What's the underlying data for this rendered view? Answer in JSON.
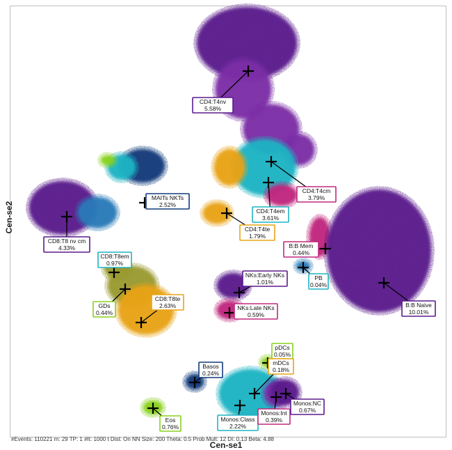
{
  "chart_data": {
    "type": "scatter",
    "title": "",
    "xlabel": "Cen-se1",
    "ylabel": "Cen-se2",
    "grid": false,
    "legend": "none",
    "footer": "#Events: 110221 m: 29 TP: 1 #It: 1000 t Dist: On NN Size: 200 Theta: 0.5 Prob Mult: 12 DI: 0.13 Beta: 4.88",
    "colors": {
      "purple": "#5a1a8c",
      "violet": "#7b2ea6",
      "magenta": "#c0287e",
      "teal": "#1fb4c4",
      "navy": "#123a7a",
      "orange": "#e8a317",
      "olive": "#9a9a30",
      "lime": "#88d11c",
      "blue": "#2a7ab8"
    },
    "populations": [
      {
        "name": "CD4:T4nv",
        "percent": "5.58%",
        "border": "#5a1a8c"
      },
      {
        "name": "CD4:T4cm",
        "percent": "3.79%",
        "border": "#c0287e"
      },
      {
        "name": "CD4:T4em",
        "percent": "3.61%",
        "border": "#1fb4c4"
      },
      {
        "name": "CD4:T4te",
        "percent": "1.79%",
        "border": "#e8a317"
      },
      {
        "name": "MAITs NKTs",
        "percent": "2.52%",
        "border": "#123a7a"
      },
      {
        "name": "CD8:T8 nv cm",
        "percent": "4.33%",
        "border": "#5a1a8c"
      },
      {
        "name": "CD8:T8em",
        "percent": "0.97%",
        "border": "#1fb4c4"
      },
      {
        "name": "GDs",
        "percent": "0.44%",
        "border": "#88d11c"
      },
      {
        "name": "CD8:T8te",
        "percent": "2.63%",
        "border": "#e8a317"
      },
      {
        "name": "B:B Mem",
        "percent": "0.44%",
        "border": "#c0287e"
      },
      {
        "name": "PB",
        "percent": "0.04%",
        "border": "#1fb4c4"
      },
      {
        "name": "B:B Naive",
        "percent": "10.01%",
        "border": "#5a1a8c"
      },
      {
        "name": "NKs:Early NKs",
        "percent": "1.01%",
        "border": "#5a1a8c"
      },
      {
        "name": "NKs:Late NKs",
        "percent": "0.59%",
        "border": "#c0287e"
      },
      {
        "name": "pDCs",
        "percent": "0.05%",
        "border": "#88d11c"
      },
      {
        "name": "mDCs",
        "percent": "0.18%",
        "border": "#e8a317"
      },
      {
        "name": "Basos",
        "percent": "0.24%",
        "border": "#123a7a"
      },
      {
        "name": "Monos:Class",
        "percent": "2.22%",
        "border": "#1fb4c4"
      },
      {
        "name": "Monos:Int",
        "percent": "0.39%",
        "border": "#c0287e"
      },
      {
        "name": "Monos:NC",
        "percent": "0.67%",
        "border": "#5a1a8c"
      },
      {
        "name": "Eos",
        "percent": "0.76%",
        "border": "#88d11c"
      }
    ]
  }
}
